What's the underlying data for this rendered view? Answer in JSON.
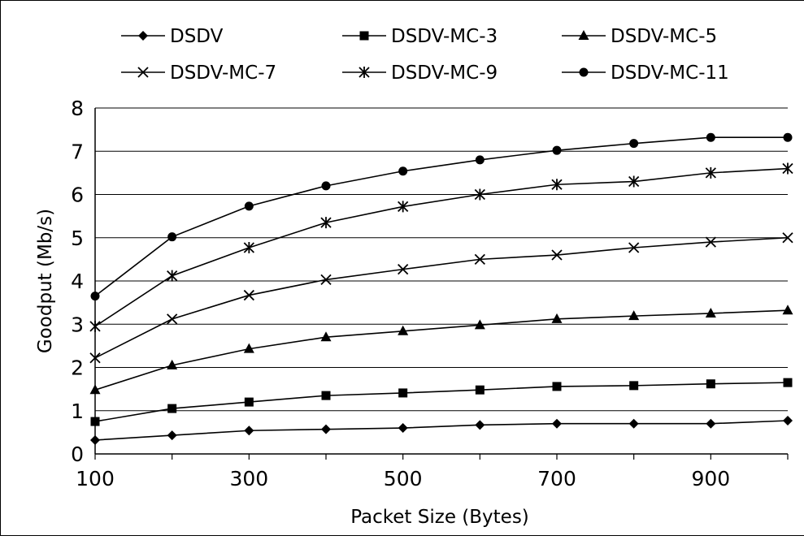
{
  "chart_data": {
    "type": "line",
    "title": "",
    "xlabel": "Packet Size (Bytes)",
    "ylabel": "Goodput (Mb/s)",
    "x": [
      100,
      200,
      300,
      400,
      500,
      600,
      700,
      800,
      900,
      1000
    ],
    "xlim": [
      100,
      1000
    ],
    "ylim": [
      0,
      8
    ],
    "x_tick_labels": [
      "100",
      "300",
      "500",
      "700",
      "900"
    ],
    "y_tick_labels": [
      "0",
      "1",
      "2",
      "3",
      "4",
      "5",
      "6",
      "7",
      "8"
    ],
    "grid": "horizontal",
    "legend_position": "top",
    "series": [
      {
        "name": "DSDV",
        "marker": "diamond",
        "values": [
          0.32,
          0.43,
          0.54,
          0.57,
          0.6,
          0.67,
          0.7,
          0.7,
          0.7,
          0.77
        ]
      },
      {
        "name": "DSDV-MC-3",
        "marker": "square",
        "values": [
          0.75,
          1.05,
          1.2,
          1.35,
          1.41,
          1.48,
          1.56,
          1.58,
          1.62,
          1.65
        ]
      },
      {
        "name": "DSDV-MC-5",
        "marker": "triangle",
        "values": [
          1.48,
          2.05,
          2.43,
          2.7,
          2.84,
          2.98,
          3.12,
          3.19,
          3.25,
          3.32
        ]
      },
      {
        "name": "DSDV-MC-7",
        "marker": "x",
        "values": [
          2.22,
          3.12,
          3.67,
          4.03,
          4.27,
          4.5,
          4.6,
          4.77,
          4.9,
          5.0
        ]
      },
      {
        "name": "DSDV-MC-9",
        "marker": "asterisk",
        "values": [
          2.95,
          4.12,
          4.77,
          5.35,
          5.72,
          6.0,
          6.23,
          6.3,
          6.5,
          6.6
        ]
      },
      {
        "name": "DSDV-MC-11",
        "marker": "circle",
        "values": [
          3.65,
          5.02,
          5.73,
          6.2,
          6.54,
          6.8,
          7.02,
          7.18,
          7.32,
          7.32
        ]
      }
    ]
  }
}
